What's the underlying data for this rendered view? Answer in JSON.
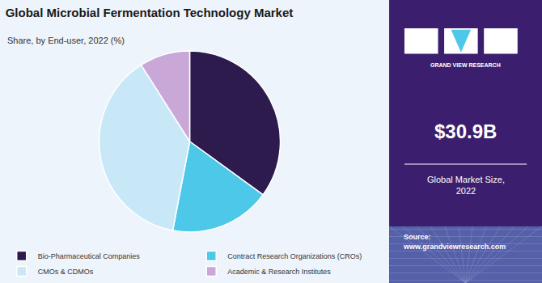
{
  "chart_data": {
    "type": "pie",
    "title": "Global Microbial Fermentation Technology Market",
    "subtitle": "Share, by End-user, 2022 (%)",
    "categories": [
      "Bio-Pharmaceutical Companies",
      "Contract Research Organizations (CROs)",
      "CMOs & CDMOs",
      "Academic & Research Institutes"
    ],
    "values": [
      35,
      18,
      38,
      9
    ],
    "colors": [
      "#2d1b4e",
      "#4dc8e8",
      "#c8e8f8",
      "#c9a8d8"
    ],
    "legend": "lower left",
    "annotations": [
      "GRAND VIEW RESEARCH",
      "$30.9B",
      "Global Market Size,\n2022",
      "Source:\nwww.grandviewresearch.com"
    ]
  }
}
